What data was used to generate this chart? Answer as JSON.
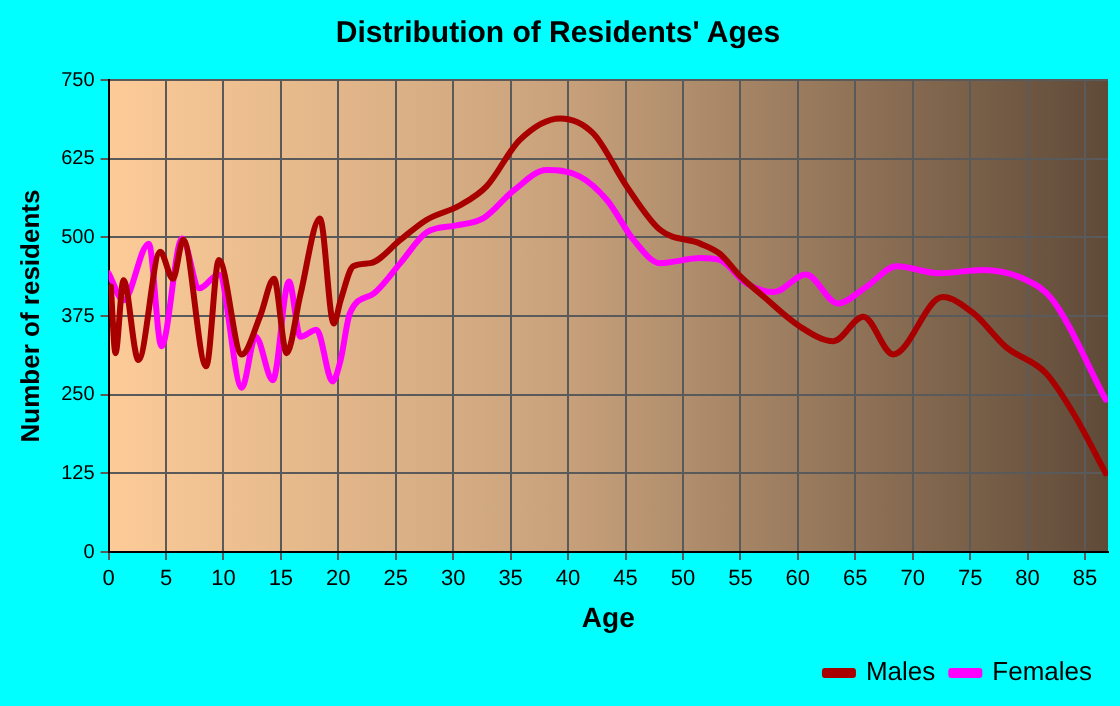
{
  "chart_data": {
    "type": "line",
    "title": "Distribution of Residents' Ages",
    "xlabel": "Age",
    "ylabel": "Number of residents",
    "xlim": [
      0,
      87
    ],
    "xticks": [
      0,
      5,
      10,
      15,
      20,
      25,
      30,
      35,
      40,
      45,
      50,
      55,
      60,
      65,
      70,
      75,
      80,
      85
    ],
    "ylim": [
      0,
      750
    ],
    "yticks": [
      0,
      125,
      250,
      375,
      500,
      625,
      750
    ],
    "grid": true,
    "legend": "bottom right",
    "marker": "none",
    "line_style": "solid",
    "series": [
      {
        "name": "Males",
        "color": "#a80000",
        "x": [
          0.2,
          0.6,
          1.3,
          2.6,
          4.5,
          5.6,
          6.5,
          8.5,
          9.6,
          11.6,
          13.2,
          14.4,
          15.5,
          16.7,
          18.4,
          19.6,
          20.2,
          21.3,
          22.8,
          25.4,
          27.7,
          30.6,
          32.9,
          35.8,
          39.3,
          42.2,
          45.1,
          48,
          51.5,
          53.2,
          55,
          56.7,
          60.2,
          63.1,
          65.7,
          68.3,
          72.6,
          75.3,
          78.1,
          81.6,
          84,
          86.8
        ],
        "values": [
          422,
          316,
          432,
          305,
          477,
          434,
          496,
          295,
          464,
          314,
          375,
          434,
          316,
          409,
          530,
          363,
          400,
          454,
          459,
          496,
          528,
          551,
          581,
          655,
          689,
          665,
          581,
          512,
          490,
          474,
          438,
          411,
          358,
          335,
          374,
          314,
          405,
          379,
          326,
          284,
          220,
          125
        ]
      },
      {
        "name": "Females",
        "color": "#ff00ff",
        "x": [
          0,
          1.3,
          3.5,
          4.6,
          6.4,
          7.9,
          9.6,
          11.6,
          12.8,
          14.3,
          15.7,
          16.7,
          18.1,
          19.5,
          20.2,
          21,
          23.1,
          25.4,
          27.7,
          30.3,
          32.6,
          35.3,
          38.1,
          41,
          43.4,
          45.7,
          48,
          51.5,
          53.2,
          55.5,
          57.9,
          60.7,
          63.5,
          66,
          68.6,
          72.3,
          76.1,
          79.9,
          82.2,
          86.8
        ],
        "values": [
          443,
          400,
          490,
          327,
          498,
          419,
          441,
          261,
          342,
          273,
          430,
          342,
          353,
          271,
          305,
          379,
          411,
          459,
          508,
          519,
          530,
          575,
          607,
          597,
          559,
          496,
          459,
          467,
          464,
          427,
          413,
          441,
          395,
          422,
          454,
          443,
          448,
          432,
          400,
          242
        ]
      }
    ]
  }
}
